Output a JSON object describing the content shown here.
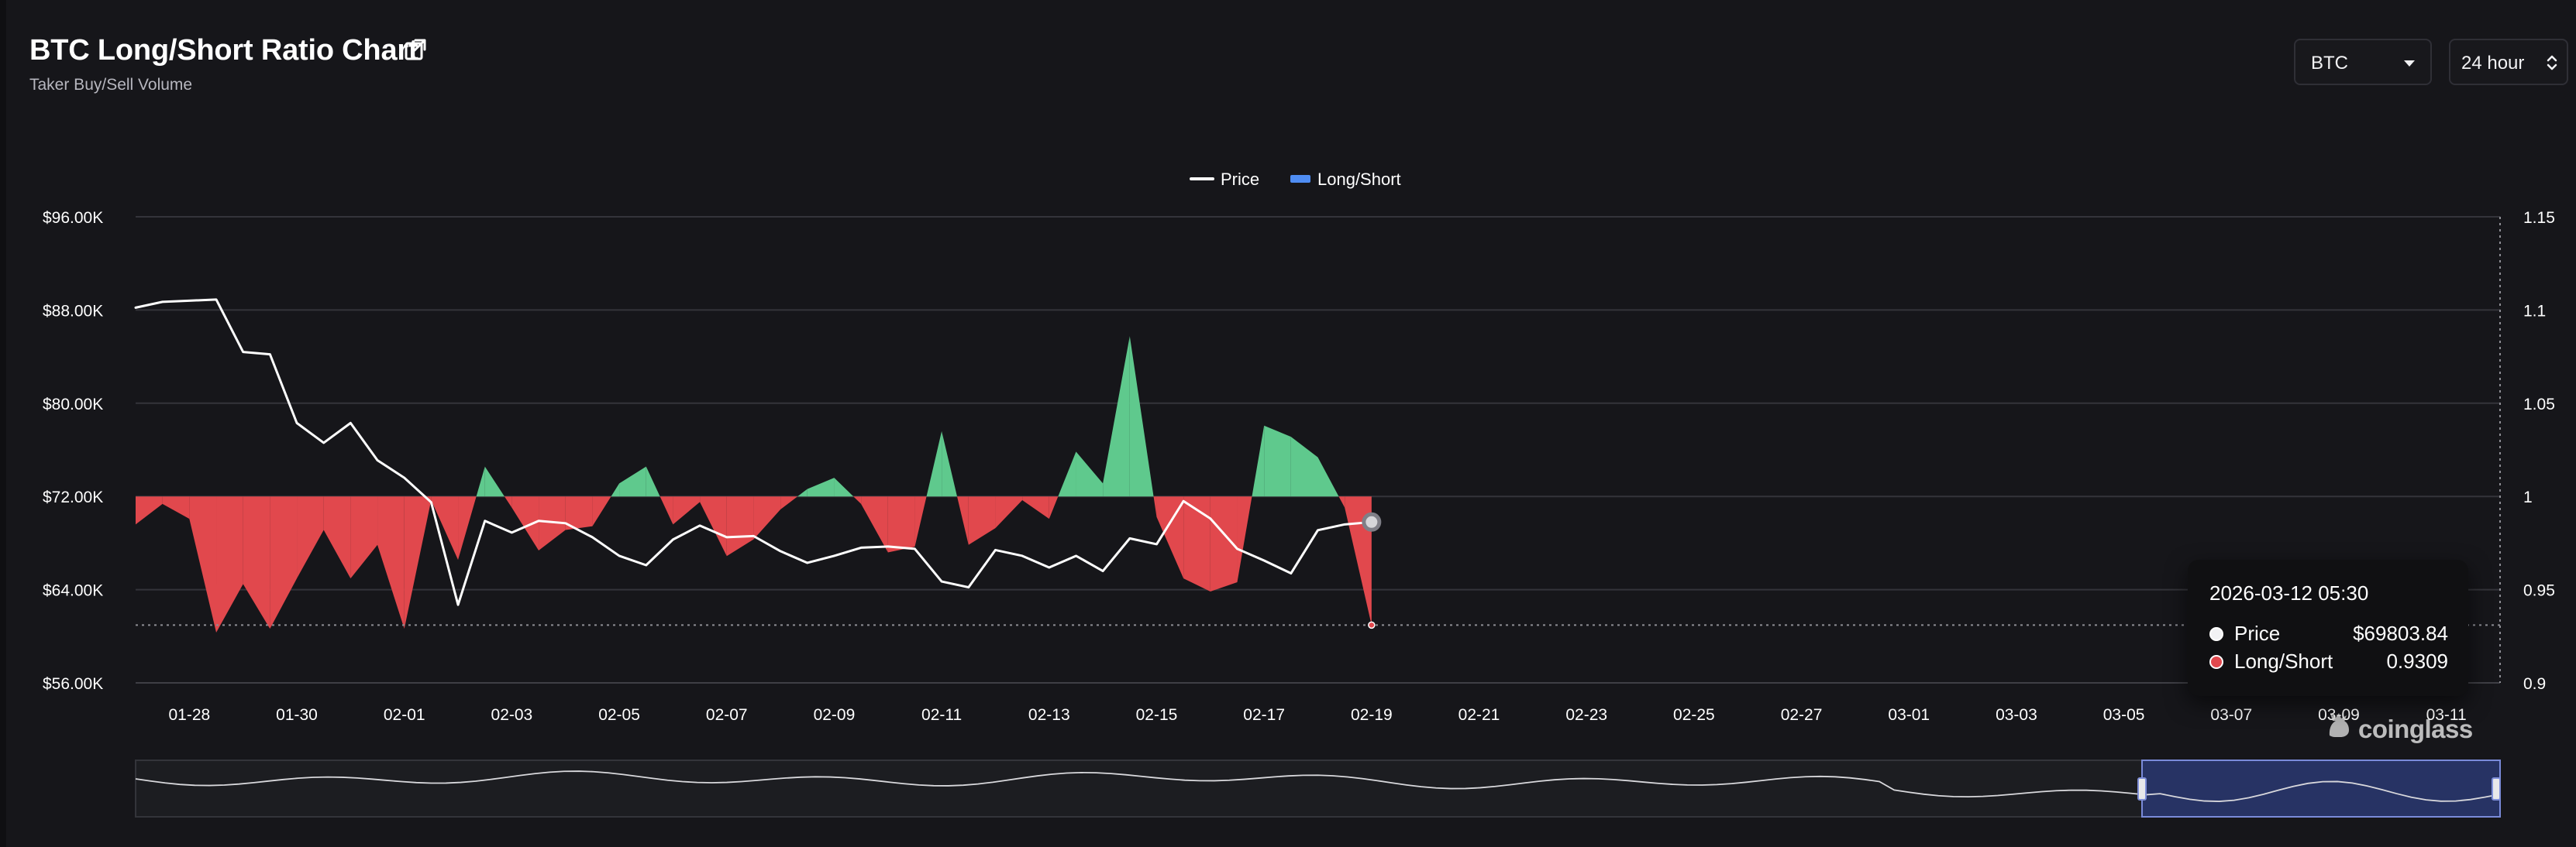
{
  "header": {
    "title": "BTC Long/Short Ratio Chart",
    "subtitle": "Taker Buy/Sell Volume",
    "external_link_icon": "external-link-icon"
  },
  "controls": {
    "coin": "BTC",
    "range": "24 hour"
  },
  "watermark": {
    "text": "coinglass"
  },
  "tooltip": {
    "date": "2026-03-12 05:30",
    "price_label": "Price",
    "price_value": "$69803.84",
    "ratio_label": "Long/Short",
    "ratio_value": "0.9309"
  },
  "chart_data": {
    "type": "line",
    "title": "BTC Long/Short Ratio Chart",
    "subtitle": "Taker Buy/Sell Volume",
    "legend": [
      "Price",
      "Long/Short"
    ],
    "legend_position": "top-center",
    "grid": true,
    "left_axis": {
      "min": 56000,
      "max": 96000,
      "ticks": [
        {
          "value": 96000,
          "label": "$96.00K"
        },
        {
          "value": 88000,
          "label": "$88.00K"
        },
        {
          "value": 80000,
          "label": "$80.00K"
        },
        {
          "value": 72000,
          "label": "$72.00K"
        },
        {
          "value": 64000,
          "label": "$64.00K"
        },
        {
          "value": 56000,
          "label": "$56.00K"
        }
      ]
    },
    "right_axis": {
      "min": 0.9,
      "max": 1.15,
      "ticks": [
        {
          "value": 1.15,
          "label": "1.15"
        },
        {
          "value": 1.1,
          "label": "1.1"
        },
        {
          "value": 1.05,
          "label": "1.05"
        },
        {
          "value": 1,
          "label": "1"
        },
        {
          "value": 0.95,
          "label": "0.95"
        },
        {
          "value": 0.9,
          "label": "0.9"
        }
      ]
    },
    "x_ticks": [
      "01-28",
      "01-30",
      "02-01",
      "02-03",
      "02-05",
      "02-07",
      "02-09",
      "02-11",
      "02-13",
      "02-15",
      "02-17",
      "02-19",
      "02-21",
      "02-23",
      "02-25",
      "02-27",
      "03-01",
      "03-03",
      "03-05",
      "03-07",
      "03-09",
      "03-11"
    ],
    "series": [
      {
        "name": "Price",
        "color": "#ffffff",
        "values": [
          {
            "date": "01-27",
            "value": 88200
          },
          {
            "date": "01-27 12:00",
            "value": 88700
          },
          {
            "date": "01-28",
            "value": 88800
          },
          {
            "date": "01-28 12:00",
            "value": 88900
          },
          {
            "date": "01-29",
            "value": 84400
          },
          {
            "date": "01-29 12:00",
            "value": 84200
          },
          {
            "date": "01-30",
            "value": 78300
          },
          {
            "date": "01-30 12:00",
            "value": 76600
          },
          {
            "date": "01-31",
            "value": 78300
          },
          {
            "date": "01-31 12:00",
            "value": 75100
          },
          {
            "date": "02-01",
            "value": 73600
          },
          {
            "date": "02-01 12:00",
            "value": 71500
          },
          {
            "date": "02-02",
            "value": 62700
          },
          {
            "date": "02-02 12:00",
            "value": 69900
          },
          {
            "date": "02-03",
            "value": 68900
          },
          {
            "date": "02-03 12:00",
            "value": 69900
          },
          {
            "date": "02-04",
            "value": 69700
          },
          {
            "date": "02-04 12:00",
            "value": 68500
          },
          {
            "date": "02-05",
            "value": 66900
          },
          {
            "date": "02-05 12:00",
            "value": 66100
          },
          {
            "date": "02-06",
            "value": 68300
          },
          {
            "date": "02-06 12:00",
            "value": 69500
          },
          {
            "date": "02-07",
            "value": 68500
          },
          {
            "date": "02-07 12:00",
            "value": 68600
          },
          {
            "date": "02-08",
            "value": 67300
          },
          {
            "date": "02-08 12:00",
            "value": 66300
          },
          {
            "date": "02-09",
            "value": 66900
          },
          {
            "date": "02-09 12:00",
            "value": 67600
          },
          {
            "date": "02-10",
            "value": 67700
          },
          {
            "date": "02-10 12:00",
            "value": 67500
          },
          {
            "date": "02-11",
            "value": 64700
          },
          {
            "date": "02-11 12:00",
            "value": 64200
          },
          {
            "date": "02-12",
            "value": 67400
          },
          {
            "date": "02-12 12:00",
            "value": 66900
          },
          {
            "date": "02-13",
            "value": 65900
          },
          {
            "date": "02-13 12:00",
            "value": 66900
          },
          {
            "date": "02-14",
            "value": 65600
          },
          {
            "date": "02-14 12:00",
            "value": 68400
          },
          {
            "date": "02-15",
            "value": 67900
          },
          {
            "date": "02-15 12:00",
            "value": 71600
          },
          {
            "date": "02-16",
            "value": 70100
          },
          {
            "date": "02-16 12:00",
            "value": 67500
          },
          {
            "date": "02-17",
            "value": 66500
          },
          {
            "date": "02-17 12:00",
            "value": 65400
          },
          {
            "date": "02-18",
            "value": 69100
          },
          {
            "date": "02-18 12:00",
            "value": 69600
          },
          {
            "date": "02-19",
            "value": 69800
          }
        ]
      },
      {
        "name": "Long/Short",
        "positive_color": "#5fc98d",
        "negative_color": "#e1484d",
        "baseline": 1,
        "values": [
          {
            "date": "01-27",
            "value": 0.985
          },
          {
            "date": "01-27 12:00",
            "value": 0.996
          },
          {
            "date": "01-28",
            "value": 0.988
          },
          {
            "date": "01-28 12:00",
            "value": 0.927
          },
          {
            "date": "01-29",
            "value": 0.953
          },
          {
            "date": "01-29 12:00",
            "value": 0.929
          },
          {
            "date": "01-30",
            "value": 0.956
          },
          {
            "date": "01-30 12:00",
            "value": 0.982
          },
          {
            "date": "01-31",
            "value": 0.956
          },
          {
            "date": "01-31 12:00",
            "value": 0.974
          },
          {
            "date": "02-01",
            "value": 0.929
          },
          {
            "date": "02-01 12:00",
            "value": 0.998
          },
          {
            "date": "02-02",
            "value": 0.966
          },
          {
            "date": "02-02 12:00",
            "value": 1.016
          },
          {
            "date": "02-03",
            "value": 0.994
          },
          {
            "date": "02-03 12:00",
            "value": 0.971
          },
          {
            "date": "02-04",
            "value": 0.982
          },
          {
            "date": "02-04 12:00",
            "value": 0.984
          },
          {
            "date": "02-05",
            "value": 1.007
          },
          {
            "date": "02-05 12:00",
            "value": 1.016
          },
          {
            "date": "02-06",
            "value": 0.985
          },
          {
            "date": "02-06 12:00",
            "value": 0.997
          },
          {
            "date": "02-07",
            "value": 0.968
          },
          {
            "date": "02-07 12:00",
            "value": 0.977
          },
          {
            "date": "02-08",
            "value": 0.993
          },
          {
            "date": "02-08 12:00",
            "value": 1.004
          },
          {
            "date": "02-09",
            "value": 1.01
          },
          {
            "date": "02-09 12:00",
            "value": 0.996
          },
          {
            "date": "02-10",
            "value": 0.97
          },
          {
            "date": "02-10 12:00",
            "value": 0.973
          },
          {
            "date": "02-11",
            "value": 1.035
          },
          {
            "date": "02-11 12:00",
            "value": 0.974
          },
          {
            "date": "02-12",
            "value": 0.983
          },
          {
            "date": "02-12 12:00",
            "value": 0.998
          },
          {
            "date": "02-13",
            "value": 0.988
          },
          {
            "date": "02-13 12:00",
            "value": 1.024
          },
          {
            "date": "02-14",
            "value": 1.007
          },
          {
            "date": "02-14 12:00",
            "value": 1.086
          },
          {
            "date": "02-15",
            "value": 0.989
          },
          {
            "date": "02-15 12:00",
            "value": 0.956
          },
          {
            "date": "02-16",
            "value": 0.949
          },
          {
            "date": "02-16 12:00",
            "value": 0.954
          },
          {
            "date": "02-17",
            "value": 1.038
          },
          {
            "date": "02-17 12:00",
            "value": 1.032
          },
          {
            "date": "02-18",
            "value": 1.021
          },
          {
            "date": "02-18 12:00",
            "value": 0.994
          },
          {
            "date": "02-19",
            "value": 0.931
          }
        ]
      }
    ]
  },
  "navigator": {
    "selected_range_label": "range selector"
  }
}
